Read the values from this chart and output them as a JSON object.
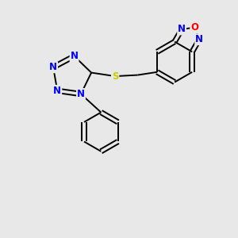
{
  "background_color": "#e8e8e8",
  "bond_color": "#000000",
  "N_color": "#0000ff",
  "O_color": "#ff0000",
  "S_color": "#cccc00",
  "font_size": 8.5,
  "lw": 1.4,
  "figw": 3.0,
  "figh": 3.0,
  "dpi": 100,
  "xlim": [
    0,
    10
  ],
  "ylim": [
    0,
    10
  ]
}
